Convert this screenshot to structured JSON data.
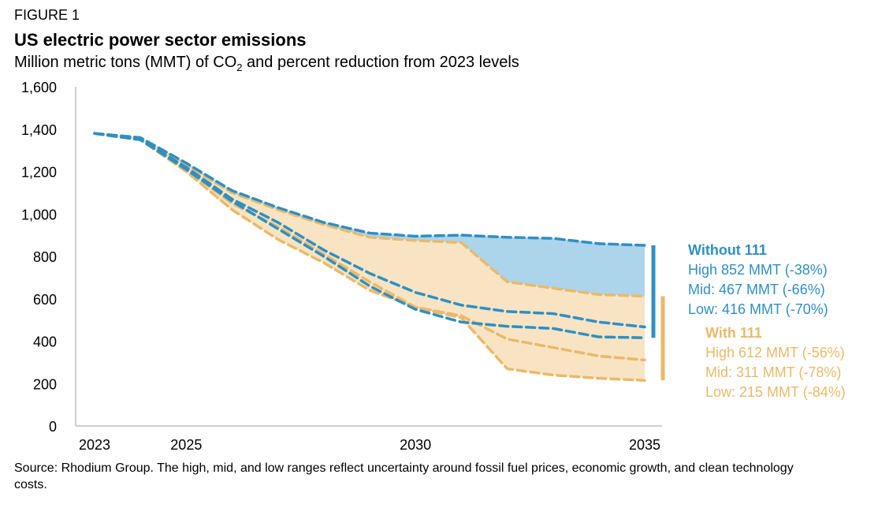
{
  "figure_label": "FIGURE 1",
  "title": "US electric power sector emissions",
  "subtitle_before": "Million metric tons (MMT) of CO",
  "subtitle_sub": "2",
  "subtitle_after": " and percent reduction from 2023 levels",
  "source": "Source: Rhodium Group. The high, mid, and low ranges reflect uncertainty around fossil fuel prices, economic growth, and clean technology costs.",
  "colors": {
    "without_111": "#2f8fc4",
    "without_111_fill": "#acd4ea",
    "with_111": "#eab96a",
    "with_111_fill": "#f8e4c3",
    "axis": "#bdbdbd"
  },
  "chart_data": {
    "type": "area",
    "xlim": [
      2023,
      2035
    ],
    "ylim": [
      0,
      1600
    ],
    "x_ticks": [
      2023,
      2025,
      2030,
      2035
    ],
    "y_ticks": [
      0,
      200,
      400,
      600,
      800,
      1000,
      1200,
      1400,
      1600
    ],
    "y_tick_labels": [
      "0",
      "200",
      "400",
      "600",
      "800",
      "1,000",
      "1,200",
      "1,400",
      "1,600"
    ],
    "x_tick_labels": [
      "2023",
      "2025",
      "2030",
      "2035"
    ],
    "x": [
      2023,
      2024,
      2025,
      2026,
      2027,
      2028,
      2029,
      2030,
      2031,
      2032,
      2033,
      2034,
      2035
    ],
    "series": [
      {
        "group": "without",
        "level": "high",
        "values": [
          1380,
          1360,
          1240,
          1110,
          1030,
          960,
          910,
          895,
          900,
          890,
          885,
          860,
          852
        ]
      },
      {
        "group": "without",
        "level": "mid",
        "values": [
          1380,
          1350,
          1220,
          1070,
          960,
          830,
          720,
          630,
          570,
          540,
          530,
          490,
          467
        ]
      },
      {
        "group": "without",
        "level": "low",
        "values": [
          1380,
          1350,
          1210,
          1060,
          930,
          800,
          660,
          550,
          490,
          470,
          460,
          420,
          416
        ]
      },
      {
        "group": "with",
        "level": "high",
        "values": [
          1380,
          1360,
          1230,
          1100,
          1020,
          950,
          890,
          875,
          865,
          680,
          650,
          620,
          612
        ]
      },
      {
        "group": "with",
        "level": "mid",
        "values": [
          1380,
          1350,
          1210,
          1050,
          940,
          810,
          680,
          560,
          520,
          410,
          370,
          330,
          311
        ]
      },
      {
        "group": "with",
        "level": "low",
        "values": [
          1380,
          1350,
          1200,
          1020,
          880,
          770,
          640,
          560,
          510,
          270,
          240,
          225,
          215
        ]
      }
    ],
    "legend": {
      "without": {
        "title": "Without 111",
        "items": [
          "High 852 MMT (-38%)",
          "Mid: 467 MMT (-66%)",
          "Low: 416 MMT (-70%)"
        ],
        "range": [
          416,
          852
        ]
      },
      "with": {
        "title": "With 111",
        "items": [
          "High 612 MMT (-56%)",
          "Mid: 311 MMT (-78%)",
          "Low: 215 MMT (-84%)"
        ],
        "range": [
          215,
          612
        ]
      }
    }
  }
}
